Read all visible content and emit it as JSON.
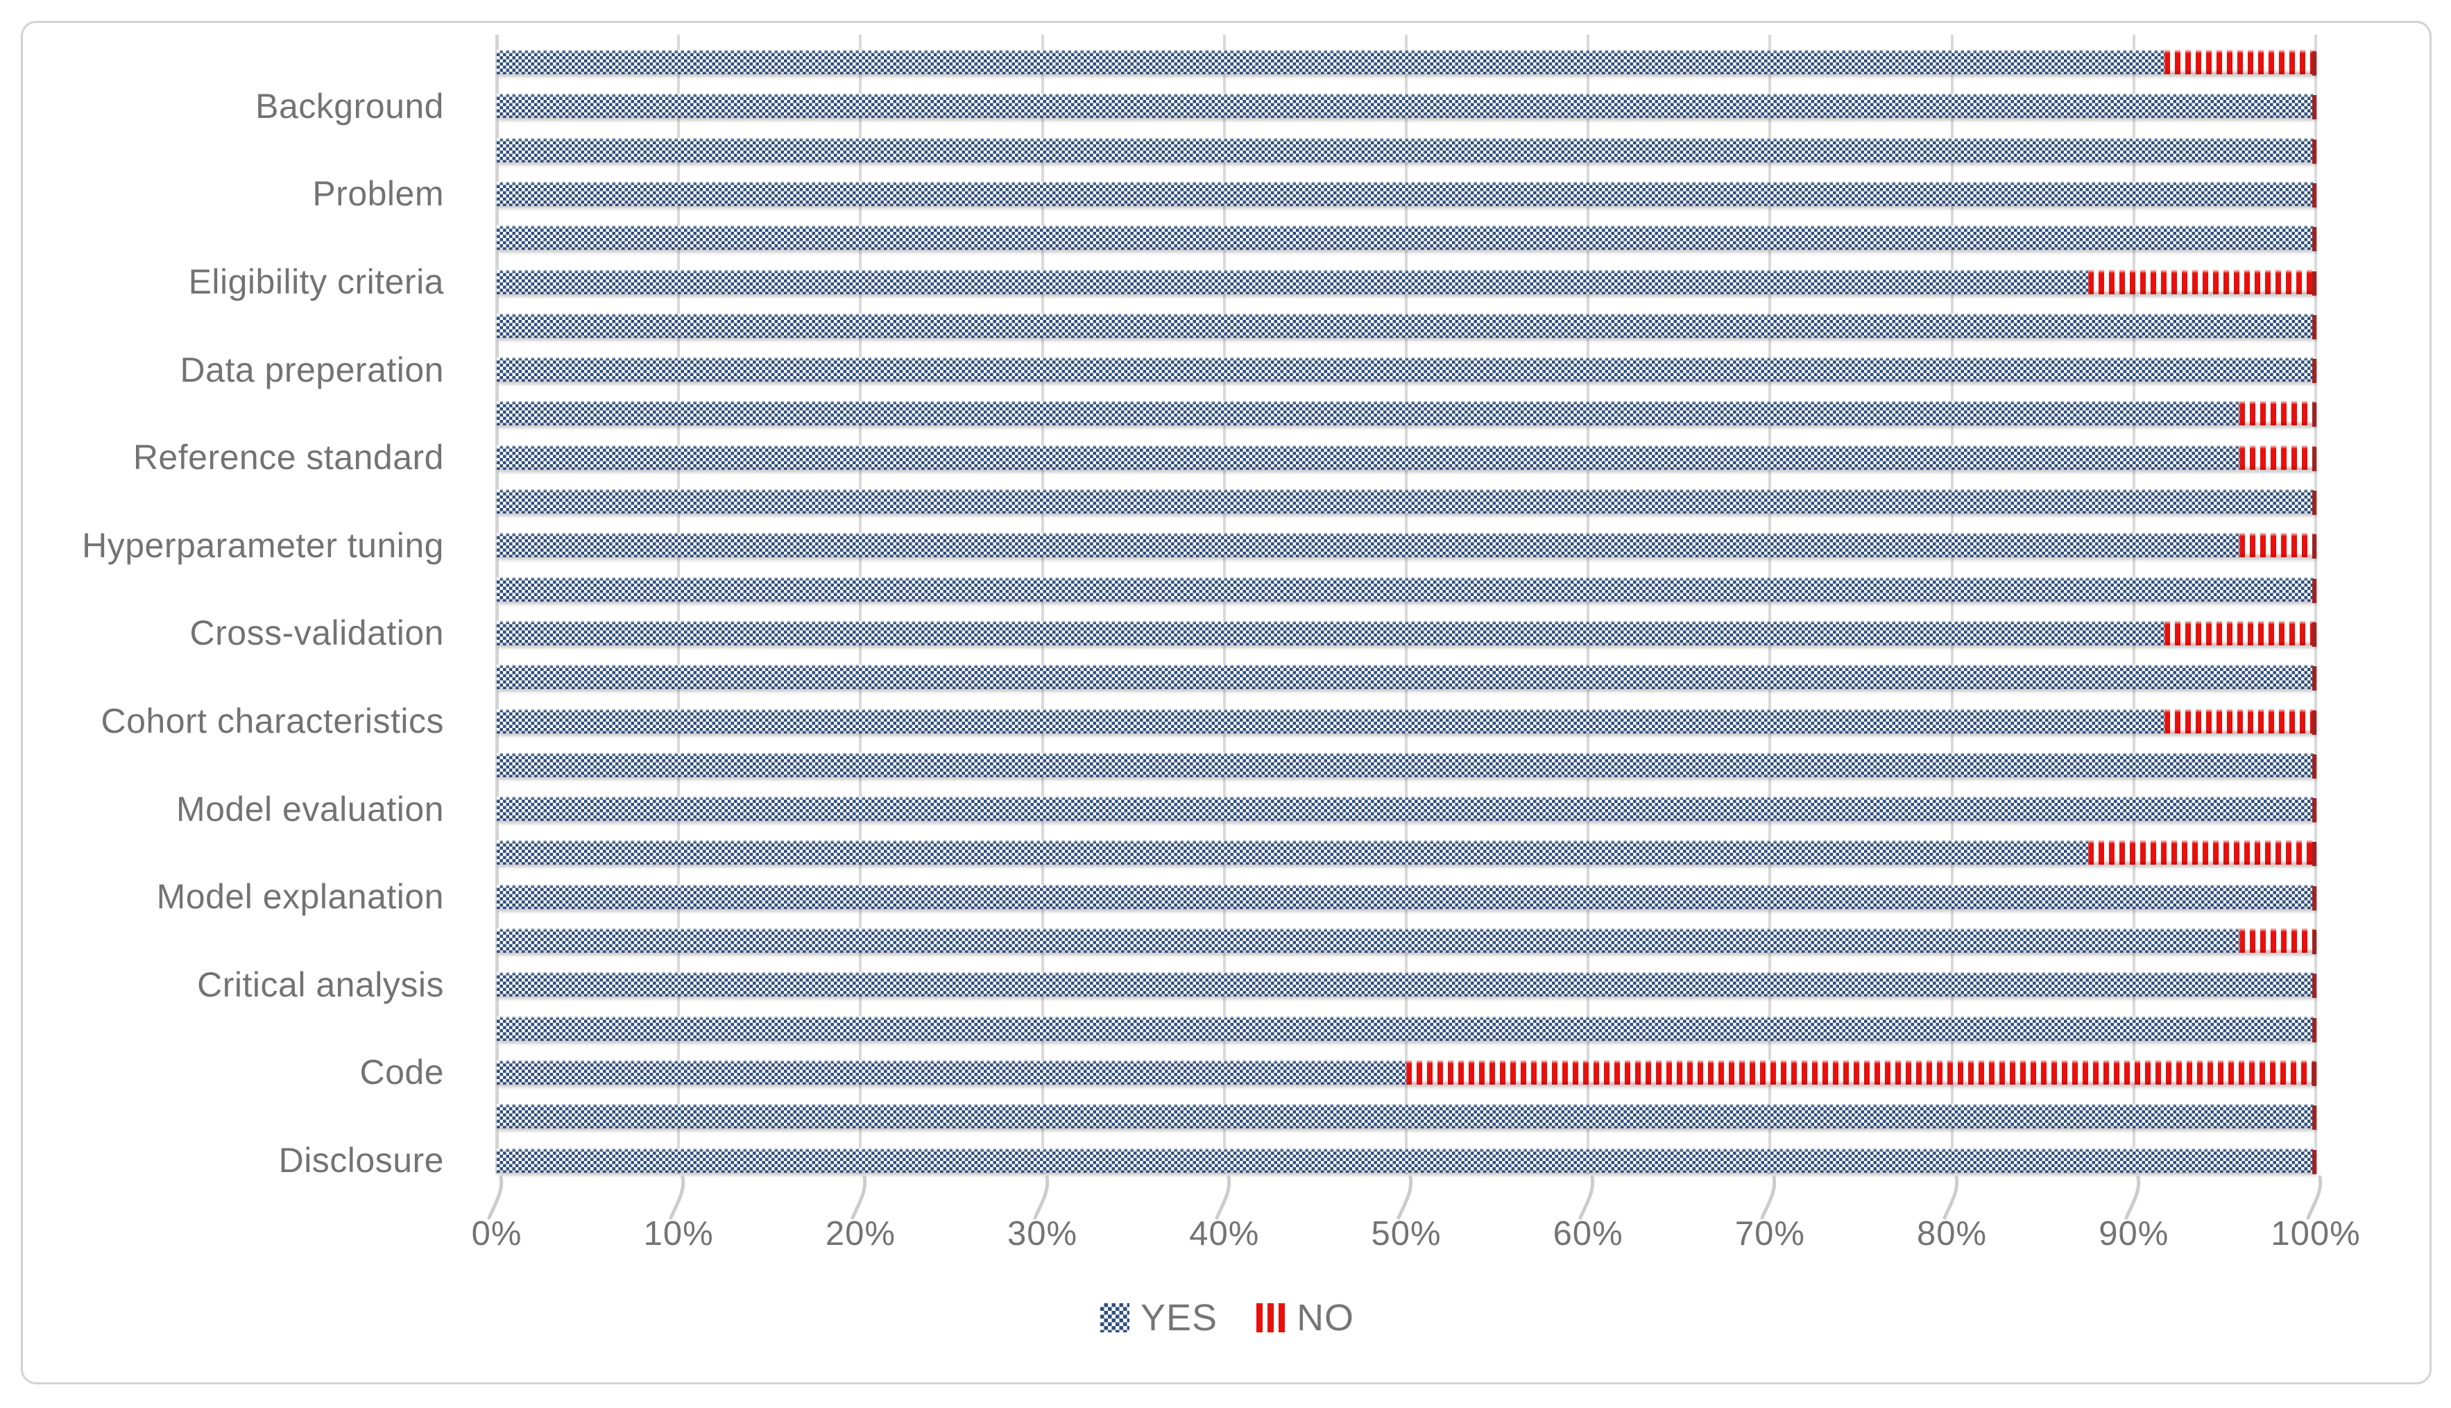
{
  "chart_data": {
    "type": "bar",
    "orientation": "horizontal",
    "stacked": true,
    "unit": "percent",
    "title": "",
    "xlim": [
      0,
      100
    ],
    "grid": true,
    "legend_position": "bottom-center",
    "x_ticks": [
      "0%",
      "10%",
      "20%",
      "30%",
      "40%",
      "50%",
      "60%",
      "70%",
      "80%",
      "90%",
      "100%"
    ],
    "categories": [
      "",
      "Background",
      "",
      "Problem",
      "",
      "Eligibility criteria",
      "",
      "Data preperation",
      "",
      "Reference standard",
      "",
      "Hyperparameter tuning",
      "",
      "Cross-validation",
      "",
      "Cohort characteristics",
      "",
      "Model evaluation",
      "",
      "Model explanation",
      "",
      "Critical analysis",
      "",
      "Code",
      "",
      "Disclosure"
    ],
    "series": [
      {
        "name": "YES",
        "values": [
          91.7,
          100,
          100,
          100,
          100,
          87.5,
          100,
          100,
          95.8,
          95.8,
          100,
          95.8,
          100,
          91.7,
          100,
          91.7,
          100,
          100,
          87.5,
          100,
          95.8,
          100,
          100,
          50,
          100,
          100
        ]
      },
      {
        "name": "NO",
        "values": [
          8.3,
          0,
          0,
          0,
          0,
          12.5,
          0,
          0,
          4.2,
          4.2,
          0,
          4.2,
          0,
          8.3,
          0,
          8.3,
          0,
          0,
          12.5,
          0,
          4.2,
          0,
          0,
          50,
          0,
          0
        ]
      }
    ]
  },
  "legend": {
    "yes_label": "YES",
    "no_label": "NO"
  },
  "colors": {
    "yes_pattern_navy": "#2f4e7e",
    "no_stripe_red": "#e8100c",
    "bar_end_cap": "#9b2423",
    "gridline": "#d9d9d9",
    "text": "#737373",
    "frame_border": "#d2d2d2",
    "background": "#ffffff"
  }
}
